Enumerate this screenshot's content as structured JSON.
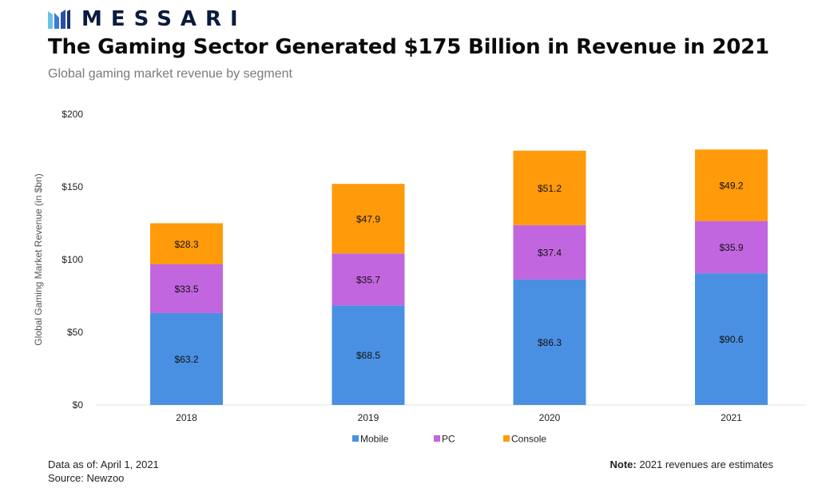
{
  "brand": {
    "name": "MESSARI",
    "logo_icon": "messari-logo-icon"
  },
  "header": {
    "title": "The Gaming Sector Generated $175 Billion in Revenue in 2021",
    "subtitle": "Global gaming market revenue by segment"
  },
  "footer": {
    "data_label": "Data as of:",
    "data_value": "April 1, 2021",
    "source_label": "Source:",
    "source_value": "Newzoo",
    "note_label": "Note:",
    "note_value": "2021 revenues are estimates"
  },
  "chart_data": {
    "type": "bar",
    "stacked": true,
    "categories": [
      "2018",
      "2019",
      "2020",
      "2021"
    ],
    "series": [
      {
        "name": "Mobile",
        "color": "#4a90e2",
        "values": [
          63.2,
          68.5,
          86.3,
          90.6
        ],
        "labels": [
          "$63.2",
          "$68.5",
          "$86.3",
          "$90.6"
        ]
      },
      {
        "name": "PC",
        "color": "#c266e0",
        "values": [
          33.5,
          35.7,
          37.4,
          35.9
        ],
        "labels": [
          "$33.5",
          "$35.7",
          "$37.4",
          "$35.9"
        ]
      },
      {
        "name": "Console",
        "color": "#ff9a0a",
        "values": [
          28.3,
          47.9,
          51.2,
          49.2
        ],
        "labels": [
          "$28.3",
          "$47.9",
          "$51.2",
          "$49.2"
        ]
      }
    ],
    "ylabel": "Global Gaming Market Revenue (in $bn)",
    "xlabel": "",
    "ylim": [
      0,
      200
    ],
    "yticks": [
      0,
      50,
      100,
      150,
      200
    ],
    "ytick_labels": [
      "$0",
      "$50",
      "$100",
      "$150",
      "$200"
    ],
    "grid": false,
    "legend_position": "bottom"
  }
}
